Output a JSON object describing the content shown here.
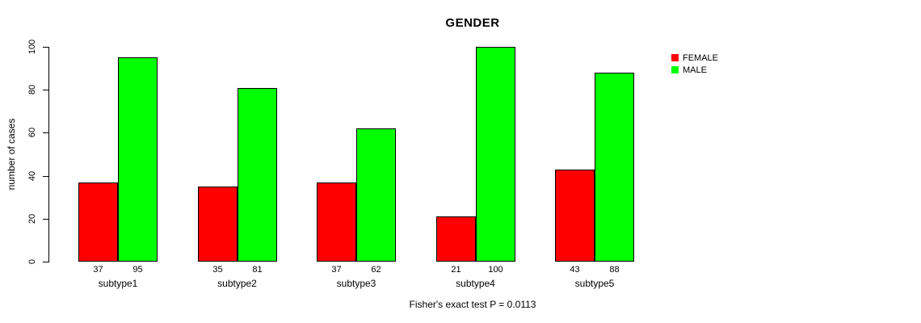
{
  "chart_data": {
    "type": "bar",
    "title": "GENDER",
    "xlabel": "",
    "ylabel": "number of cases",
    "categories": [
      "subtype1",
      "subtype2",
      "subtype3",
      "subtype4",
      "subtype5"
    ],
    "series": [
      {
        "name": "FEMALE",
        "color": "#ff0000",
        "values": [
          37,
          35,
          37,
          21,
          43
        ]
      },
      {
        "name": "MALE",
        "color": "#00ff00",
        "values": [
          95,
          81,
          62,
          100,
          88
        ]
      }
    ],
    "ylim": [
      0,
      100
    ],
    "yticks": [
      0,
      20,
      40,
      60,
      80,
      100
    ],
    "grid": false,
    "legend_position": "top-right",
    "bar_value_labels": true,
    "annotation": "Fisher's exact test P = 0.0113",
    "colors": {
      "female": "#ff0000",
      "male": "#00ff00",
      "axis": "#000000",
      "background": "#ffffff"
    }
  }
}
